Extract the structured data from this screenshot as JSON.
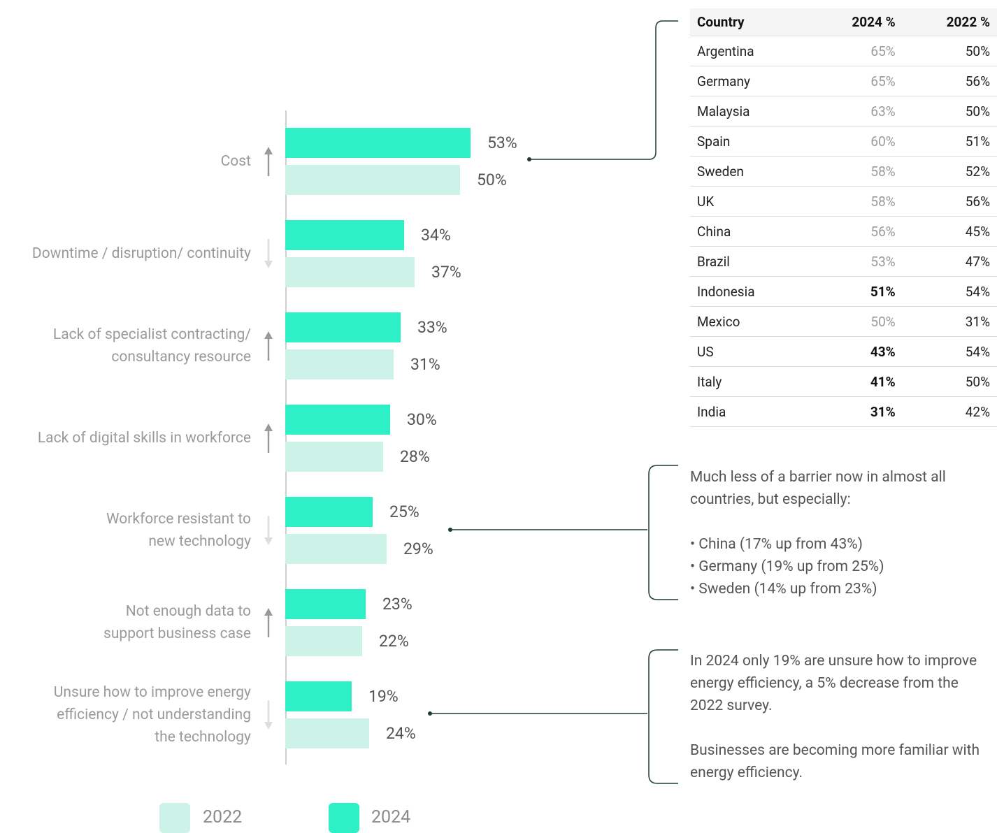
{
  "chart_data": {
    "type": "bar",
    "orientation": "horizontal",
    "categories": [
      "Cost",
      "Downtime / disruption/ continuity",
      "Lack of specialist contracting/\nconsultancy resource",
      "Lack of digital skills in workforce",
      "Workforce resistant to\nnew technology",
      "Not enough data to\nsupport business case",
      "Unsure how to improve energy\nefficiency / not understanding\nthe technology"
    ],
    "series": [
      {
        "name": "2024",
        "color": "#2ef0c6",
        "values": [
          53,
          34,
          33,
          30,
          25,
          23,
          19
        ],
        "value_labels": [
          "53%",
          "34%",
          "33%",
          "30%",
          "25%",
          "23%",
          "19%"
        ]
      },
      {
        "name": "2022",
        "color": "#cdf2e8",
        "values": [
          50,
          37,
          31,
          28,
          29,
          22,
          24
        ],
        "value_labels": [
          "50%",
          "37%",
          "31%",
          "28%",
          "29%",
          "22%",
          "24%"
        ]
      }
    ]
  },
  "table": {
    "columns": [
      "Country",
      "2024 %",
      "2022 %"
    ],
    "rows": [
      {
        "cells": [
          "Argentina",
          "65%",
          "50%"
        ],
        "highlight": false
      },
      {
        "cells": [
          "Germany",
          "65%",
          "56%"
        ],
        "highlight": false
      },
      {
        "cells": [
          "Malaysia",
          "63%",
          "50%"
        ],
        "highlight": false
      },
      {
        "cells": [
          "Spain",
          "60%",
          "51%"
        ],
        "highlight": false
      },
      {
        "cells": [
          "Sweden",
          "58%",
          "52%"
        ],
        "highlight": false
      },
      {
        "cells": [
          "UK",
          "58%",
          "56%"
        ],
        "highlight": false
      },
      {
        "cells": [
          "China",
          "56%",
          "45%"
        ],
        "highlight": false
      },
      {
        "cells": [
          "Brazil",
          "53%",
          "47%"
        ],
        "highlight": false
      },
      {
        "cells": [
          "Indonesia",
          "51%",
          "54%"
        ],
        "highlight": true
      },
      {
        "cells": [
          "Mexico",
          "50%",
          "31%"
        ],
        "highlight": false
      },
      {
        "cells": [
          "US",
          "43%",
          "54%"
        ],
        "highlight": true
      },
      {
        "cells": [
          "Italy",
          "41%",
          "50%"
        ],
        "highlight": true
      },
      {
        "cells": [
          "India",
          "31%",
          "42%"
        ],
        "highlight": true
      }
    ]
  },
  "annotations": [
    {
      "paragraphs": [
        "Much less of a barrier now in almost all countries, but especially:"
      ],
      "bullets": [
        "• China (17% up from 43%)",
        "• Germany (19% up from 25%)",
        "• Sweden (14% up from 23%)"
      ]
    },
    {
      "paragraphs": [
        "In 2024 only 19% are unsure how to improve energy efficiency, a 5% decrease from the 2022 survey.",
        "Businesses are becoming more familiar with energy efficiency."
      ]
    }
  ]
}
